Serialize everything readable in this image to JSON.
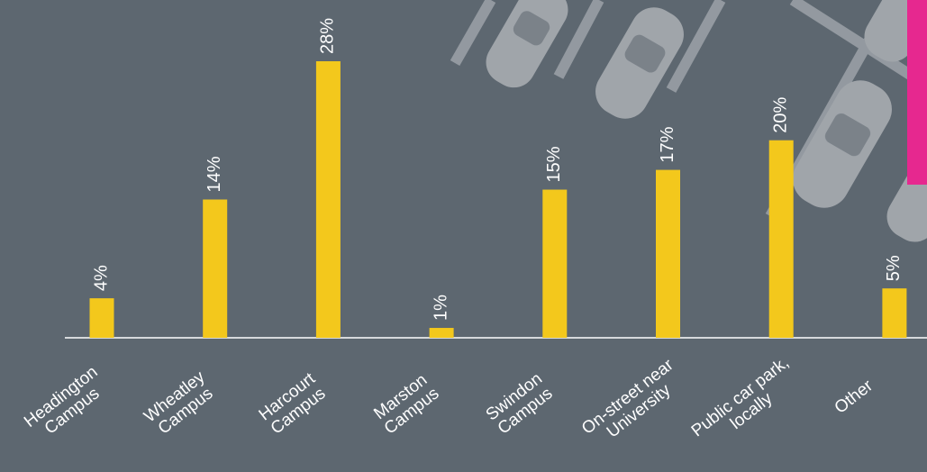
{
  "chart_data": {
    "type": "bar",
    "categories": [
      "Headington\nCampus",
      "Wheatley\nCampus",
      "Harcourt\nCampus",
      "Marston\nCampus",
      "Swindon\nCampus",
      "On-street near\nUniversity",
      "Public car park,\nlocally",
      "Other"
    ],
    "values": [
      4,
      14,
      28,
      1,
      15,
      17,
      20,
      5
    ],
    "value_labels": [
      "4%",
      "14%",
      "28%",
      "1%",
      "15%",
      "17%",
      "20%",
      "5%"
    ],
    "color": "#f3c81c",
    "ylim": [
      0,
      28
    ]
  }
}
